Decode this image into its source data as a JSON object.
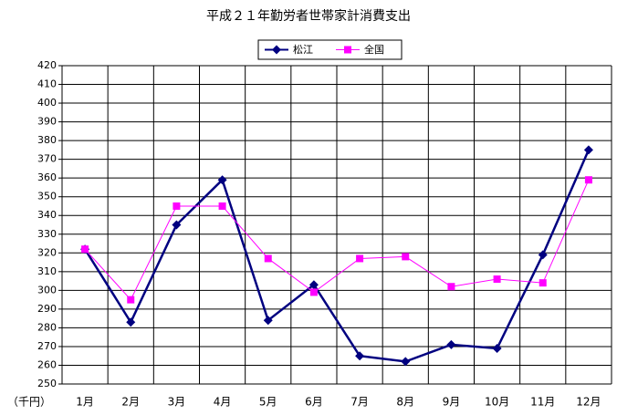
{
  "chart_data": {
    "type": "line",
    "title": "平成２１年勤労者世帯家計消費支出",
    "y_label": "（千円）",
    "categories": [
      "1月",
      "2月",
      "3月",
      "4月",
      "5月",
      "6月",
      "7月",
      "8月",
      "9月",
      "10月",
      "11月",
      "12月"
    ],
    "series": [
      {
        "name": "松江",
        "color": "#000080",
        "marker": "diamond",
        "values": [
          322,
          283,
          335,
          359,
          284,
          303,
          265,
          262,
          271,
          269,
          319,
          375
        ]
      },
      {
        "name": "全国",
        "color": "#ff00ff",
        "marker": "square",
        "values": [
          322,
          295,
          345,
          345,
          317,
          299,
          317,
          318,
          302,
          306,
          304,
          359
        ]
      }
    ],
    "ylim": [
      250,
      420
    ],
    "yticks": [
      250,
      260,
      270,
      280,
      290,
      300,
      310,
      320,
      330,
      340,
      350,
      360,
      370,
      380,
      390,
      400,
      410,
      420
    ],
    "grid": true
  }
}
